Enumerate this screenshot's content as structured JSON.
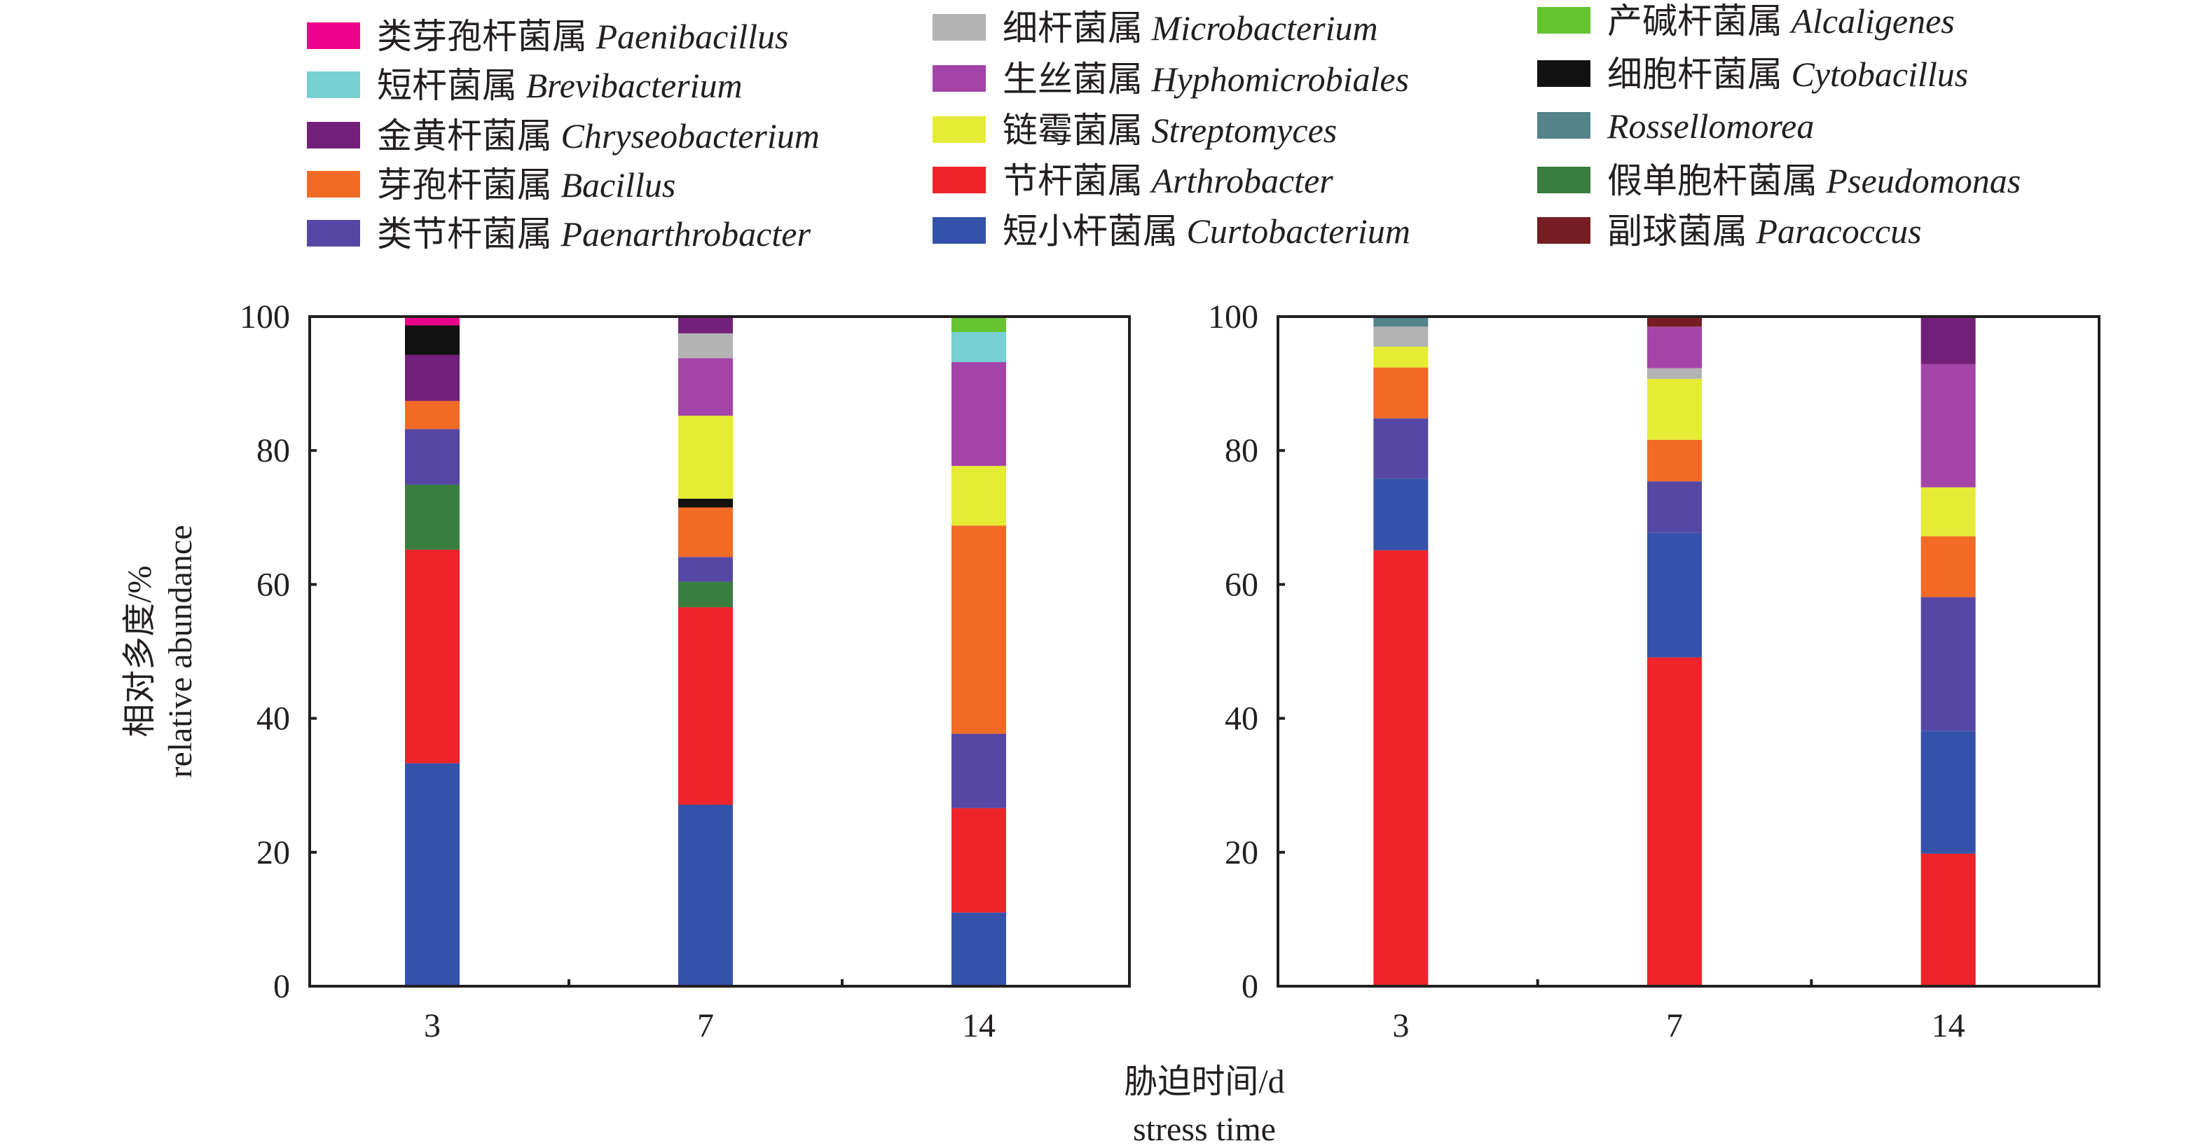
{
  "chart_data": {
    "type": "bar",
    "stacked": true,
    "xlabel_cn": "胁迫时间/d",
    "xlabel_en": "stress time",
    "ylabel_cn": "相对多度/%",
    "ylabel_en": "relative abundance",
    "ylim": [
      0,
      100
    ],
    "yticks": [
      0,
      20,
      40,
      60,
      80,
      100
    ],
    "categories": [
      "3",
      "7",
      "14"
    ],
    "legend_placement": "top",
    "legend": [
      {
        "key": "Paenibacillus",
        "cn": "类芽孢杆菌属",
        "latin": "Paenibacillus",
        "color": "#EC008C"
      },
      {
        "key": "Brevibacterium",
        "cn": "短杆菌属",
        "latin": "Brevibacterium",
        "color": "#77D0D2"
      },
      {
        "key": "Chryseobacterium",
        "cn": "金黄杆菌属",
        "latin": "Chryseobacterium",
        "color": "#73207A"
      },
      {
        "key": "Bacillus",
        "cn": "芽孢杆菌属",
        "latin": "Bacillus",
        "color": "#F26B26"
      },
      {
        "key": "Paenarthrobacter",
        "cn": "类节杆菌属",
        "latin": "Paenarthrobacter",
        "color": "#5647A4"
      },
      {
        "key": "Microbacterium",
        "cn": "细杆菌属",
        "latin": "Microbacterium",
        "color": "#B3B3B3"
      },
      {
        "key": "Hyphomicrobiales",
        "cn": "生丝菌属",
        "latin": "Hyphomicrobiales",
        "color": "#A544A8"
      },
      {
        "key": "Streptomyces",
        "cn": "链霉菌属",
        "latin": "Streptomyces",
        "color": "#E6EC35"
      },
      {
        "key": "Arthrobacter",
        "cn": "节杆菌属",
        "latin": "Arthrobacter",
        "color": "#EE242A"
      },
      {
        "key": "Curtobacterium",
        "cn": "短小杆菌属",
        "latin": "Curtobacterium",
        "color": "#3452A9"
      },
      {
        "key": "Alcaligenes",
        "cn": "产碱杆菌属",
        "latin": "Alcaligenes",
        "color": "#66C430"
      },
      {
        "key": "Cytobacillus",
        "cn": "细胞杆菌属",
        "latin": "Cytobacillus",
        "color": "#111111"
      },
      {
        "key": "Rossellomorea",
        "cn": "",
        "latin": "Rossellomorea",
        "color": "#52848A"
      },
      {
        "key": "Pseudomonas",
        "cn": "假单胞杆菌属",
        "latin": "Pseudomonas",
        "color": "#3A7E3F"
      },
      {
        "key": "Paracoccus",
        "cn": "副球菌属",
        "latin": "Paracoccus",
        "color": "#751D21"
      }
    ],
    "panels": [
      {
        "name": "left",
        "bars": [
          {
            "category": "3",
            "segments": [
              {
                "genus": "Curtobacterium",
                "value": 33.3
              },
              {
                "genus": "Arthrobacter",
                "value": 31.9
              },
              {
                "genus": "Pseudomonas",
                "value": 9.7
              },
              {
                "genus": "Paenarthrobacter",
                "value": 8.3
              },
              {
                "genus": "Bacillus",
                "value": 4.2
              },
              {
                "genus": "Chryseobacterium",
                "value": 6.9
              },
              {
                "genus": "Cytobacillus",
                "value": 4.4
              },
              {
                "genus": "Paenibacillus",
                "value": 1.3
              }
            ]
          },
          {
            "category": "7",
            "segments": [
              {
                "genus": "Curtobacterium",
                "value": 27.1
              },
              {
                "genus": "Arthrobacter",
                "value": 29.5
              },
              {
                "genus": "Pseudomonas",
                "value": 3.8
              },
              {
                "genus": "Paenarthrobacter",
                "value": 3.7
              },
              {
                "genus": "Bacillus",
                "value": 7.4
              },
              {
                "genus": "Cytobacillus",
                "value": 1.3
              },
              {
                "genus": "Streptomyces",
                "value": 12.4
              },
              {
                "genus": "Hyphomicrobiales",
                "value": 8.6
              },
              {
                "genus": "Microbacterium",
                "value": 3.7
              },
              {
                "genus": "Chryseobacterium",
                "value": 2.5
              }
            ]
          },
          {
            "category": "14",
            "segments": [
              {
                "genus": "Curtobacterium",
                "value": 11.0
              },
              {
                "genus": "Arthrobacter",
                "value": 15.6
              },
              {
                "genus": "Paenarthrobacter",
                "value": 11.1
              },
              {
                "genus": "Bacillus",
                "value": 31.1
              },
              {
                "genus": "Streptomyces",
                "value": 8.9
              },
              {
                "genus": "Hyphomicrobiales",
                "value": 15.5
              },
              {
                "genus": "Brevibacterium",
                "value": 4.5
              },
              {
                "genus": "Alcaligenes",
                "value": 2.3
              }
            ]
          }
        ]
      },
      {
        "name": "right",
        "bars": [
          {
            "category": "3",
            "segments": [
              {
                "genus": "Arthrobacter",
                "value": 65.1
              },
              {
                "genus": "Curtobacterium",
                "value": 10.7
              },
              {
                "genus": "Paenarthrobacter",
                "value": 9.0
              },
              {
                "genus": "Bacillus",
                "value": 7.6
              },
              {
                "genus": "Streptomyces",
                "value": 3.1
              },
              {
                "genus": "Microbacterium",
                "value": 3.0
              },
              {
                "genus": "Rossellomorea",
                "value": 1.5
              }
            ]
          },
          {
            "category": "7",
            "segments": [
              {
                "genus": "Arthrobacter",
                "value": 49.1
              },
              {
                "genus": "Curtobacterium",
                "value": 18.6
              },
              {
                "genus": "Paenarthrobacter",
                "value": 7.7
              },
              {
                "genus": "Bacillus",
                "value": 6.2
              },
              {
                "genus": "Streptomyces",
                "value": 9.1
              },
              {
                "genus": "Microbacterium",
                "value": 1.6
              },
              {
                "genus": "Hyphomicrobiales",
                "value": 6.2
              },
              {
                "genus": "Paracoccus",
                "value": 1.5
              }
            ]
          },
          {
            "category": "14",
            "segments": [
              {
                "genus": "Arthrobacter",
                "value": 19.8
              },
              {
                "genus": "Curtobacterium",
                "value": 18.3
              },
              {
                "genus": "Paenarthrobacter",
                "value": 20.0
              },
              {
                "genus": "Bacillus",
                "value": 9.1
              },
              {
                "genus": "Streptomyces",
                "value": 7.3
              },
              {
                "genus": "Hyphomicrobiales",
                "value": 18.4
              },
              {
                "genus": "Chryseobacterium",
                "value": 7.1
              }
            ]
          }
        ]
      }
    ]
  }
}
